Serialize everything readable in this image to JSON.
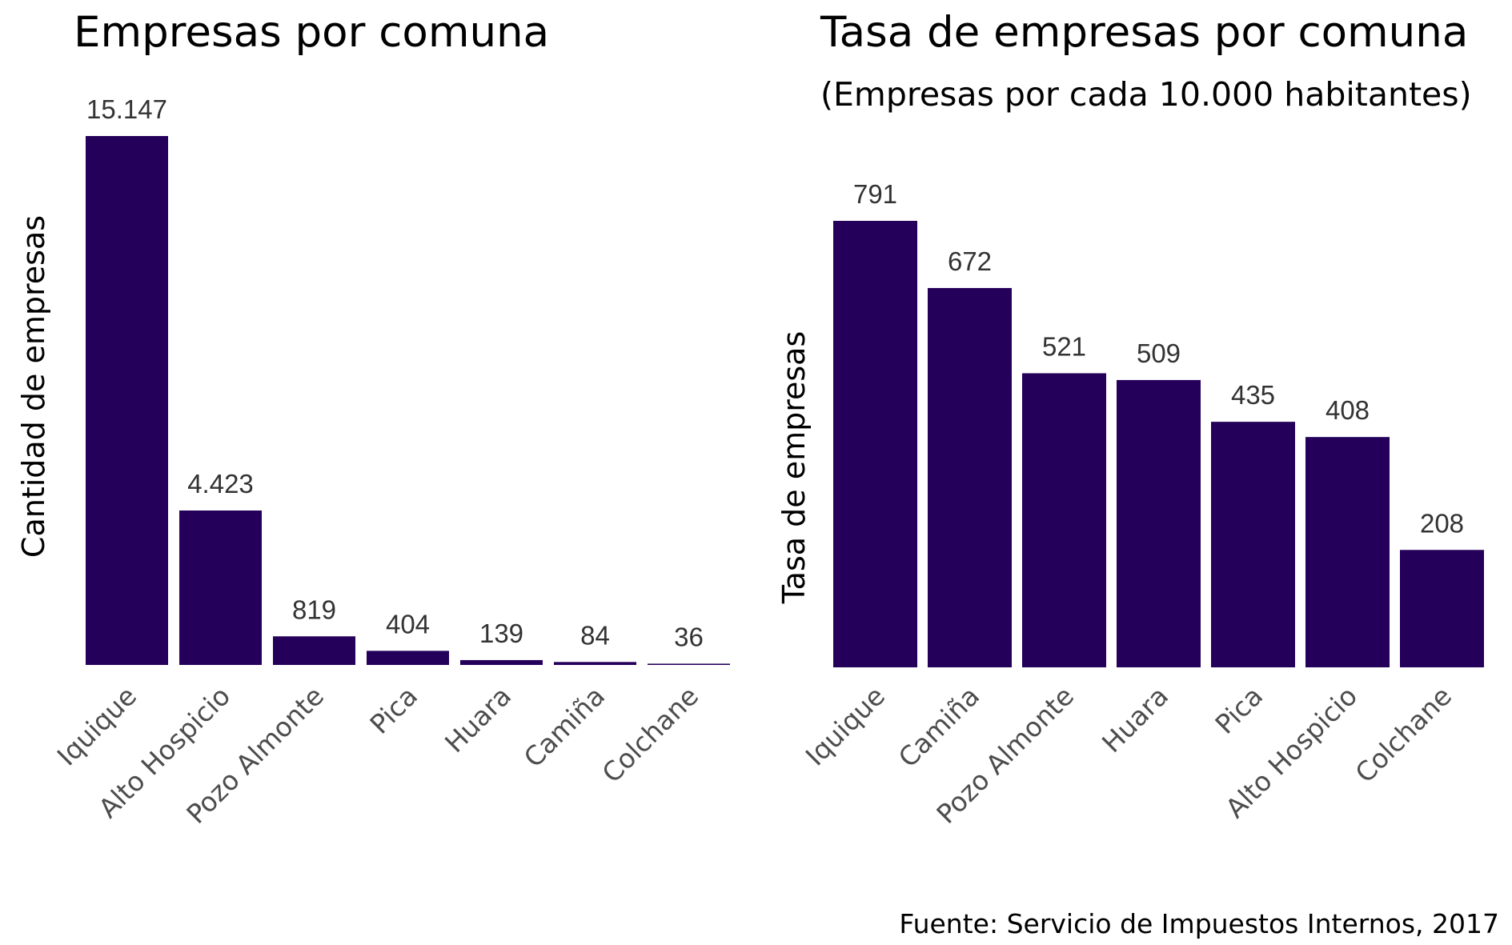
{
  "colors": {
    "bar": "#24005a",
    "tick_label": "#4d4d4d",
    "value_label": "#333333",
    "text": "#000000",
    "background": "#ffffff"
  },
  "caption": "Fuente: Servicio de Impuestos Internos, 2017",
  "chart_data": [
    {
      "type": "bar",
      "title": "Empresas por comuna",
      "subtitle": "",
      "xlabel": "",
      "ylabel": "Cantidad de empresas",
      "categories": [
        "Iquique",
        "Alto Hospicio",
        "Pozo Almonte",
        "Pica",
        "Huara",
        "Camiña",
        "Colchane"
      ],
      "values": [
        15147,
        4423,
        819,
        404,
        139,
        84,
        36
      ],
      "value_labels": [
        "15.147",
        "4.423",
        "819",
        "404",
        "139",
        "84",
        "36"
      ],
      "ylim": [
        0,
        15147
      ],
      "grid": false,
      "legend": "none"
    },
    {
      "type": "bar",
      "title": "Tasa de empresas por comuna",
      "subtitle": "(Empresas por cada 10.000 habitantes)",
      "xlabel": "",
      "ylabel": "Tasa de empresas",
      "categories": [
        "Iquique",
        "Camiña",
        "Pozo Almonte",
        "Huara",
        "Pica",
        "Alto Hospicio",
        "Colchane"
      ],
      "values": [
        791,
        672,
        521,
        509,
        435,
        408,
        208
      ],
      "value_labels": [
        "791",
        "672",
        "521",
        "509",
        "435",
        "408",
        "208"
      ],
      "ylim": [
        0,
        791
      ],
      "grid": false,
      "legend": "none"
    }
  ]
}
